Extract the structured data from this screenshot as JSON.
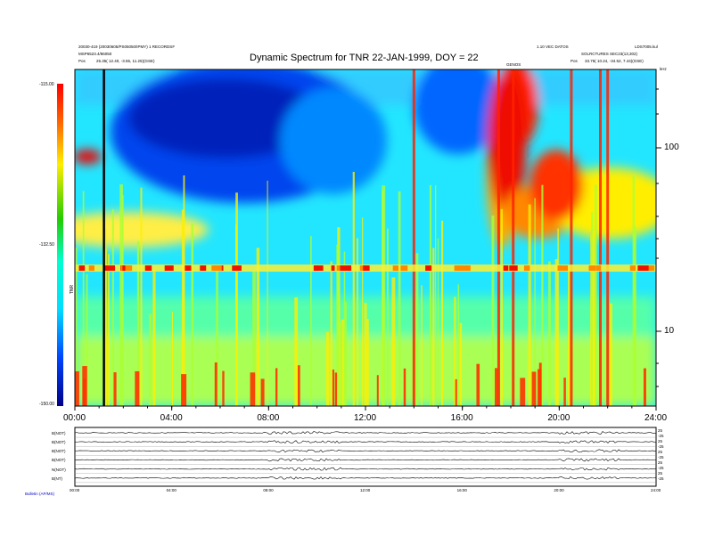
{
  "header": {
    "title": "Dynamic Spectrum for TNR 22-JAN-1999, DOY = 22",
    "left_line1": "20030-419 (20030605/PS05050/IPMY) 1 RECORDSF",
    "left_line2": "MSP6523.4/86050",
    "left_line3_label": "Pos",
    "left_line3_value": "25.35( 12.40, -3.55, 11.25)(GSE)",
    "right_line1": "1.10 VEC DATOS",
    "right_line2": "SOLRCTURES SEC23(13,302)",
    "right_line3_label": "Pos",
    "right_line3_value": "33.76( 10.24, -34.52, 7.44)(GSE)",
    "corner_label": "LDS7005.kul",
    "center_mark": "GENOS",
    "khz_label": "kHz"
  },
  "colorbar": {
    "ticks": [
      "-115.00",
      "-132.50",
      "-150.00"
    ],
    "label": "TNR",
    "colors": [
      "#ff0000",
      "#ffff00",
      "#00cc00",
      "#00ffff",
      "#0000ff",
      "#000080"
    ]
  },
  "chart_data": {
    "type": "heatmap",
    "title": "Dynamic Spectrum for TNR 22-JAN-1999, DOY = 22",
    "x_tick_labels": [
      "00:00",
      "04:00",
      "08:00",
      "12:00",
      "16:00",
      "20:00",
      "24:00"
    ],
    "x_range_hours": [
      0,
      24
    ],
    "y_tick_labels": [
      "100",
      "10"
    ],
    "y_scale": "log",
    "y_range_khz": [
      4,
      256
    ],
    "z_range": [
      -150.0,
      -115.0
    ],
    "features": {
      "plasma_line_khz": 22,
      "vertical_marker_hour": 1.2,
      "strong_burst_hours": [
        14.0,
        17.5,
        18.1,
        20.5,
        21.7,
        22.0
      ],
      "low_intensity_region": {
        "hours": [
          2,
          10
        ],
        "khz": [
          90,
          256
        ]
      }
    }
  },
  "bottom_panel": {
    "row_labels": [
      "B(NOT)",
      "B(NOT)",
      "B(NOT)",
      "B(NOT)",
      "N(NOT)",
      "B(NT)"
    ],
    "right_labels_top": [
      "25",
      "-25",
      "25",
      "-25",
      "25",
      "-25",
      "25",
      "-25",
      "25",
      "-25"
    ],
    "time_ticks": [
      "00:00",
      "04:00",
      "08:00",
      "12:00",
      "16:00",
      "20:00",
      "24:00"
    ],
    "footer": "Bulletin (AP/MS)"
  }
}
